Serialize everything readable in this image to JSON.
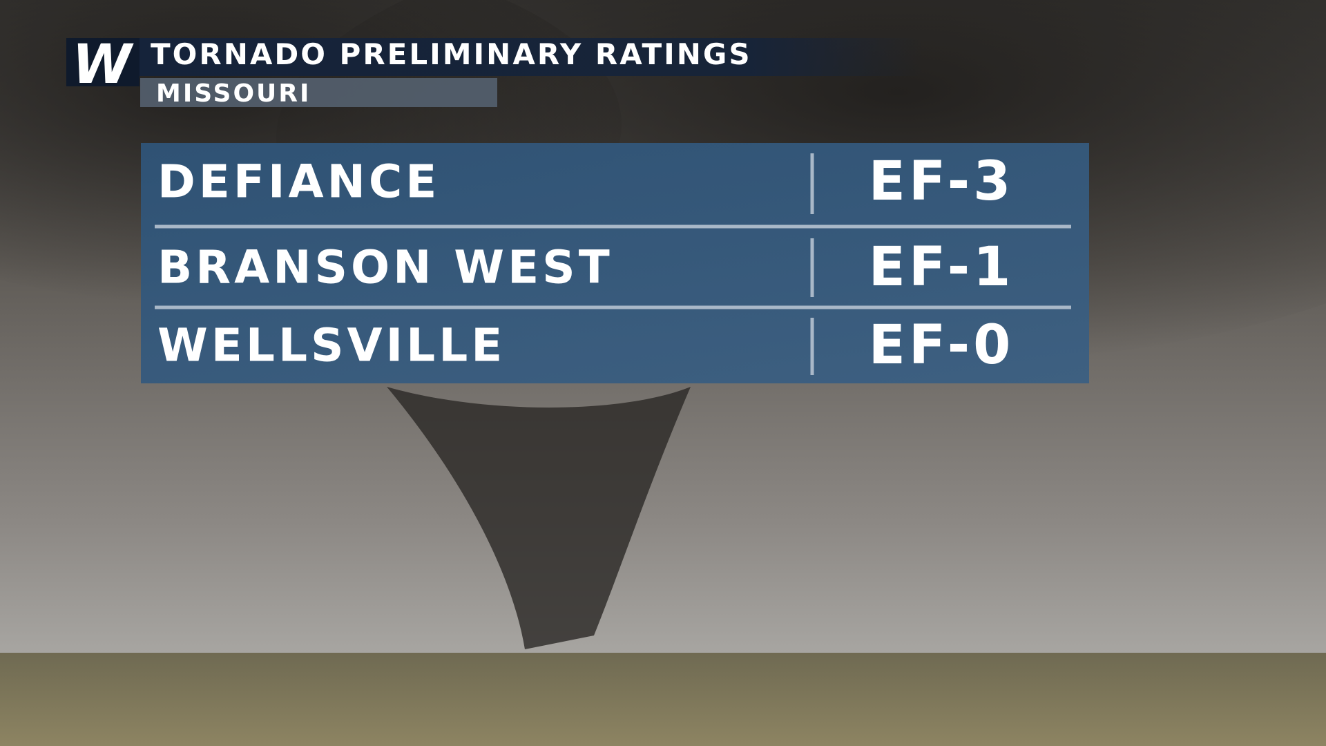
{
  "header": {
    "logo": "W",
    "title": "TORNADO PRELIMINARY RATINGS",
    "subtitle": "MISSOURI"
  },
  "table": {
    "rows": [
      [
        "DEFIANCE",
        "EF-3"
      ],
      [
        "BRANSON WEST",
        "EF-1"
      ],
      [
        "WELLSVILLE",
        "EF-0"
      ]
    ]
  }
}
